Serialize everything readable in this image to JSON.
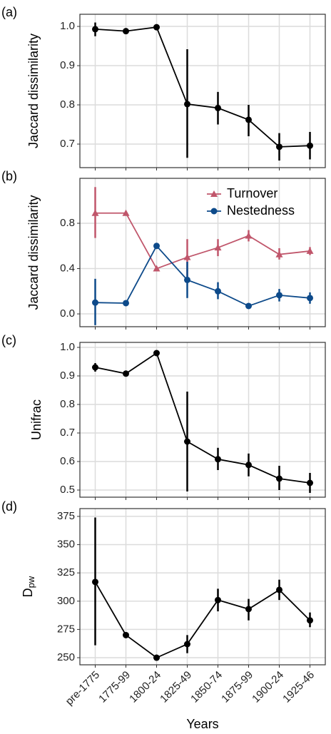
{
  "chart_data": [
    {
      "type": "line",
      "panel_label": "(a)",
      "y_label": "Jaccard dissimilarity",
      "values": [
        0.993,
        0.988,
        0.998,
        0.802,
        0.792,
        0.762,
        0.693,
        0.696
      ],
      "lower": [
        0.975,
        null,
        null,
        0.665,
        0.75,
        0.72,
        0.658,
        0.661
      ],
      "upper": [
        1.01,
        null,
        null,
        0.942,
        0.833,
        0.8,
        0.728,
        0.731
      ],
      "color": "#000000",
      "ylim": [
        0.64,
        1.031
      ],
      "yticks": [
        0.7,
        0.8,
        0.9,
        {
          "value": 1,
          "label": "1.0"
        }
      ],
      "grid": true
    },
    {
      "type": "line",
      "panel_label": "(b)",
      "y_label": "Jaccard dissimilarity",
      "series": [
        {
          "name": "Turnover",
          "color": "#c0566b",
          "marker": "triangle",
          "values": [
            0.89,
            0.89,
            0.4,
            0.5,
            0.585,
            0.69,
            0.525,
            0.555
          ],
          "lower": [
            0.67,
            null,
            null,
            0.32,
            0.51,
            0.64,
            0.48,
            0.52
          ],
          "upper": [
            1.12,
            null,
            null,
            0.66,
            0.66,
            0.74,
            0.58,
            0.59
          ]
        },
        {
          "name": "Nestedness",
          "color": "#0d4a8a",
          "marker": "circle",
          "values": [
            0.1,
            0.095,
            0.6,
            0.3,
            0.2,
            0.07,
            0.165,
            0.14
          ],
          "lower": [
            -0.1,
            null,
            null,
            0.14,
            0.13,
            null,
            0.11,
            0.09
          ],
          "upper": [
            0.31,
            null,
            null,
            0.46,
            0.28,
            null,
            0.22,
            0.19
          ]
        }
      ],
      "ylim": [
        -0.113,
        1.197
      ],
      "yticks": [
        {
          "value": 0,
          "label": "0.0"
        },
        0.4,
        0.8
      ],
      "grid": true,
      "legend": "top-right"
    },
    {
      "type": "line",
      "panel_label": "(c)",
      "y_label": "Unifrac",
      "values": [
        0.93,
        0.908,
        0.98,
        0.67,
        0.608,
        0.588,
        0.54,
        0.525
      ],
      "lower": [
        0.915,
        null,
        null,
        0.495,
        0.57,
        0.548,
        0.5,
        0.49
      ],
      "upper": [
        0.945,
        null,
        null,
        0.845,
        0.648,
        0.628,
        0.585,
        0.56
      ],
      "color": "#000000",
      "ylim": [
        0.475,
        1.0175
      ],
      "yticks": [
        0.5,
        0.6,
        0.7,
        0.8,
        0.9,
        {
          "value": 1,
          "label": "1.0"
        }
      ],
      "grid": true
    },
    {
      "type": "line",
      "panel_label": "(d)",
      "y_label": "D",
      "y_label_sub": "pw",
      "x_label": "Years",
      "categories": [
        "pre-1775",
        "1775-99",
        "1800-24",
        "1825-49",
        "1850-74",
        "1875-99",
        "1900-24",
        "1925-46"
      ],
      "values": [
        317,
        270,
        250,
        262,
        301,
        293,
        310,
        283
      ],
      "lower": [
        261,
        null,
        null,
        254,
        291,
        283,
        301,
        277
      ],
      "upper": [
        374,
        null,
        null,
        270,
        311,
        302,
        319,
        290
      ],
      "color": "#000000",
      "ylim": [
        243.7,
        381.9
      ],
      "yticks": [
        250,
        275,
        300,
        325,
        350,
        375
      ],
      "grid": true
    }
  ]
}
